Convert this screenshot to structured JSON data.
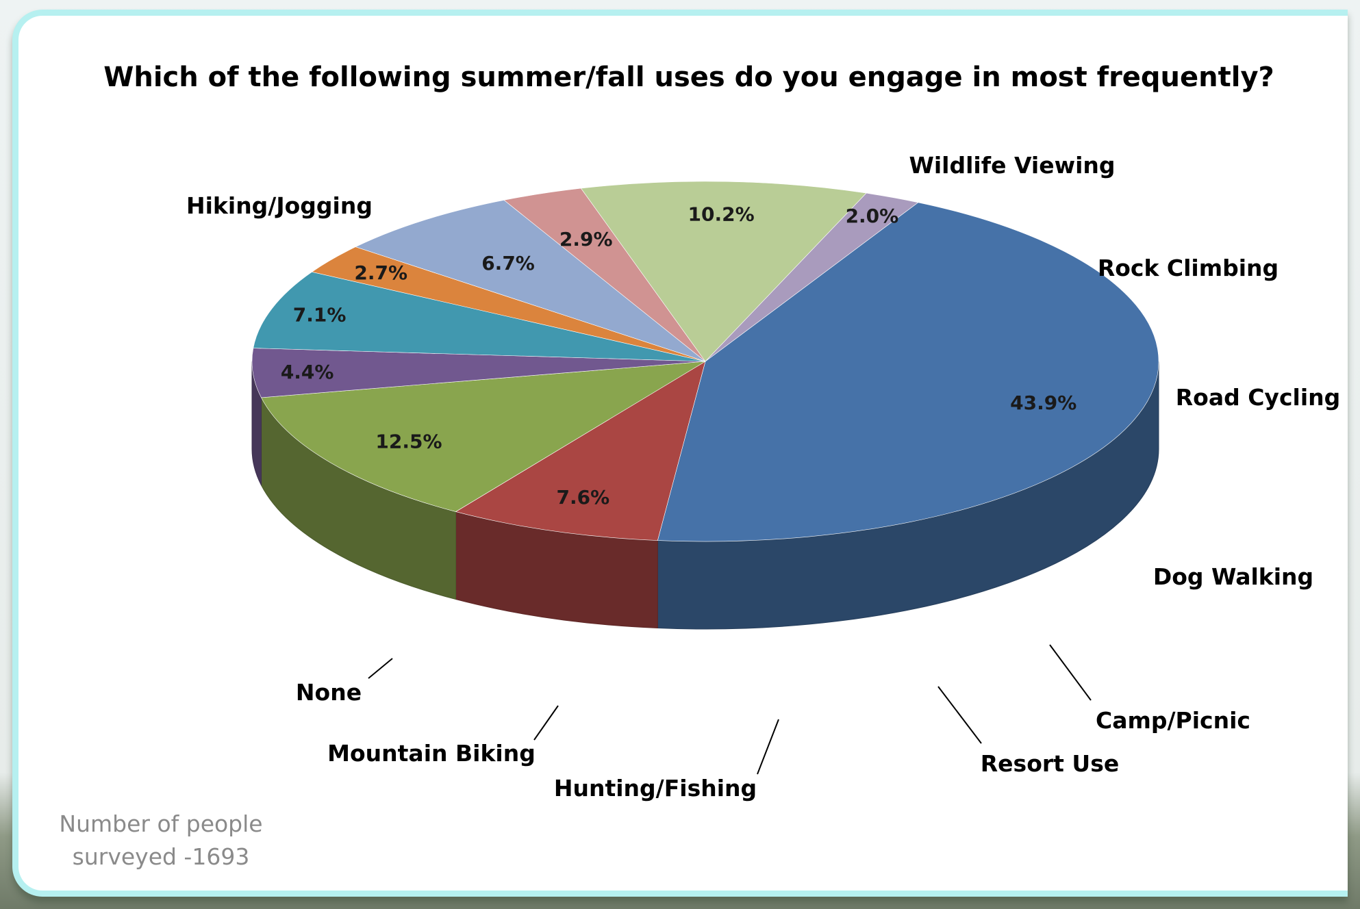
{
  "chart_data": {
    "type": "pie",
    "title": "Which of the following summer/fall uses do you engage in most frequently?",
    "slices": [
      {
        "label": "Hiking/Jogging",
        "value": 43.9,
        "value_label": "43.9%",
        "color": "#4672A8"
      },
      {
        "label": "Wildlife Viewing",
        "value": 7.6,
        "value_label": "7.6%",
        "color": "#AA4643"
      },
      {
        "label": "Rock Climbing",
        "value": 12.5,
        "value_label": "12.5%",
        "color": "#89A54E"
      },
      {
        "label": "Road Cycling",
        "value": 4.4,
        "value_label": "4.4%",
        "color": "#71588F"
      },
      {
        "label": "Dog Walking",
        "value": 7.1,
        "value_label": "7.1%",
        "color": "#4198AF"
      },
      {
        "label": "Camp/Picnic",
        "value": 2.7,
        "value_label": "2.7%",
        "color": "#DB843D"
      },
      {
        "label": "Resort Use",
        "value": 6.7,
        "value_label": "6.7%",
        "color": "#93A9CF"
      },
      {
        "label": "Hunting/Fishing",
        "value": 2.9,
        "value_label": "2.9%",
        "color": "#D09392"
      },
      {
        "label": "Mountain Biking",
        "value": 10.2,
        "value_label": "10.2%",
        "color": "#B9CD96"
      },
      {
        "label": "None",
        "value": 2.0,
        "value_label": "2.0%",
        "color": "#A99BBD"
      }
    ],
    "legend": "none"
  },
  "note": {
    "line1": "Number of people",
    "line2": "surveyed -1693"
  }
}
